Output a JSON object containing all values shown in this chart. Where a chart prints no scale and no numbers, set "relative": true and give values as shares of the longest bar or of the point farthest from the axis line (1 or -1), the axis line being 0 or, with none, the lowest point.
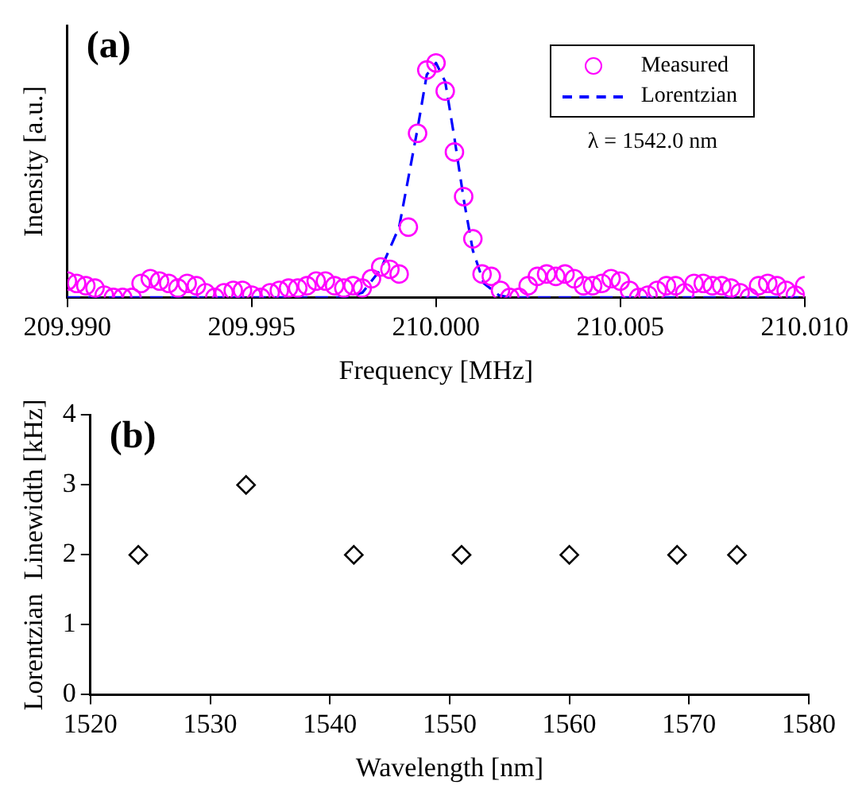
{
  "chart_data": [
    {
      "type": "scatter",
      "relative": true,
      "xlabel": "Frequency [MHz]",
      "ylabel": "Inensity [a.u.]",
      "xlim": [
        209.99,
        210.01
      ],
      "xticks": [
        {
          "value": 209.99,
          "label": "209.990"
        },
        {
          "value": 209.995,
          "label": "209.995"
        },
        {
          "value": 210.0,
          "label": "210.000"
        },
        {
          "value": 210.005,
          "label": "210.005"
        },
        {
          "value": 210.01,
          "label": "210.010"
        }
      ],
      "legend": "top right",
      "grid": false,
      "annotations": [
        "(a)",
        "λ = 1542.0 nm"
      ],
      "series": [
        {
          "name": "Measured",
          "type": "scatter",
          "marker": "circle",
          "color": "#ff00ff",
          "x": [
            209.99,
            209.99025,
            209.9905,
            209.99075,
            209.991,
            209.99125,
            209.9915,
            209.99175,
            209.992,
            209.99225,
            209.9925,
            209.99275,
            209.993,
            209.99325,
            209.9935,
            209.99375,
            209.994,
            209.99425,
            209.9945,
            209.99475,
            209.995,
            209.99525,
            209.9955,
            209.99575,
            209.996,
            209.99625,
            209.9965,
            209.99675,
            209.997,
            209.99725,
            209.9975,
            209.99775,
            209.998,
            209.99825,
            209.9985,
            209.99875,
            209.999,
            209.99925,
            209.9995,
            209.99975,
            210.0,
            210.00025,
            210.0005,
            210.00075,
            210.001,
            210.00125,
            210.0015,
            210.00175,
            210.002,
            210.00225,
            210.0025,
            210.00275,
            210.003,
            210.00325,
            210.0035,
            210.00375,
            210.004,
            210.00425,
            210.0045,
            210.00475,
            210.005,
            210.00525,
            210.0055,
            210.00575,
            210.006,
            210.00625,
            210.0065,
            210.00675,
            210.007,
            210.00725,
            210.0075,
            210.00775,
            210.008,
            210.00825,
            210.0085,
            210.00875,
            210.009,
            210.00925,
            210.0095,
            210.00975,
            210.01
          ],
          "values": [
            0.07,
            0.06,
            0.05,
            0.04,
            0.01,
            0.0,
            0.0,
            0.0,
            0.06,
            0.08,
            0.07,
            0.06,
            0.04,
            0.06,
            0.05,
            0.02,
            0.0,
            0.02,
            0.03,
            0.03,
            0.01,
            0.0,
            0.02,
            0.03,
            0.04,
            0.04,
            0.05,
            0.07,
            0.07,
            0.05,
            0.04,
            0.05,
            0.04,
            0.08,
            0.13,
            0.12,
            0.1,
            0.3,
            0.7,
            0.97,
            1.0,
            0.88,
            0.62,
            0.43,
            0.25,
            0.1,
            0.09,
            0.03,
            0.0,
            0.0,
            0.05,
            0.09,
            0.1,
            0.09,
            0.1,
            0.08,
            0.05,
            0.05,
            0.06,
            0.08,
            0.07,
            0.03,
            0.0,
            0.01,
            0.03,
            0.05,
            0.05,
            0.02,
            0.06,
            0.06,
            0.05,
            0.05,
            0.04,
            0.02,
            0.0,
            0.05,
            0.06,
            0.05,
            0.03,
            0.01,
            0.05
          ]
        },
        {
          "name": "Lorentzian",
          "type": "line",
          "marker": "none",
          "line_style": "dashed",
          "color": "#0000ff",
          "x": [
            209.99,
            209.9975,
            209.998,
            209.9985,
            209.999,
            209.9995,
            209.99975,
            210.0,
            210.00025,
            210.0005,
            210.00075,
            210.001,
            210.0013,
            210.0017,
            210.002,
            210.01
          ],
          "values": [
            0,
            0,
            0.02,
            0.12,
            0.3,
            0.72,
            0.95,
            1.0,
            0.92,
            0.68,
            0.42,
            0.2,
            0.06,
            0.01,
            0,
            0
          ]
        }
      ]
    },
    {
      "type": "scatter",
      "xlabel": "Wavelength [nm]",
      "ylabel": "Lorentzian  Linewidth [kHz]",
      "xlim": [
        1520,
        1580
      ],
      "xticks": [
        1520,
        1530,
        1540,
        1550,
        1560,
        1570,
        1580
      ],
      "ylim": [
        0,
        4
      ],
      "yticks": [
        0,
        1,
        2,
        3,
        4
      ],
      "grid": false,
      "legend": false,
      "annotations": [
        "(b)"
      ],
      "series": [
        {
          "type": "scatter",
          "marker": "diamond",
          "color": "#000000",
          "x": [
            1524,
            1533,
            1542,
            1551,
            1560,
            1569,
            1574
          ],
          "values": [
            2,
            3,
            2,
            2,
            2,
            2,
            2
          ]
        }
      ]
    }
  ]
}
